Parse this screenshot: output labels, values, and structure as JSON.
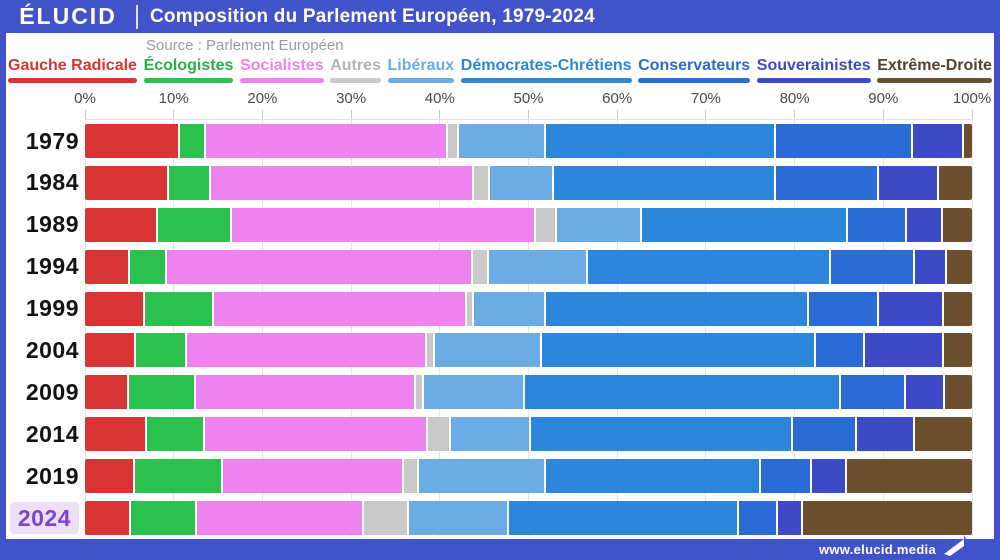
{
  "header": {
    "logo": "ÉLUCID",
    "title": "Composition du Parlement Européen, 1979-2024"
  },
  "source": "Source : Parlement Européen",
  "footer": {
    "website": "www.elucid.media"
  },
  "colors": {
    "frame_blue": "#4153C8",
    "highlight_bg": "#ECDFF8",
    "highlight_text": "#7B44C9",
    "grid": "#E6E6E6",
    "axis_text": "#4A4A4A",
    "year_text": "#121212",
    "source_text": "#9B9B9B"
  },
  "chart_data": {
    "type": "bar",
    "stacked": true,
    "orientation": "horizontal",
    "unit": "percent",
    "xlim": [
      0,
      100
    ],
    "grid": true,
    "x_ticks": [
      "0%",
      "10%",
      "20%",
      "30%",
      "40%",
      "50%",
      "60%",
      "70%",
      "80%",
      "90%",
      "100%"
    ],
    "categories": [
      "1979",
      "1984",
      "1989",
      "1994",
      "1999",
      "2004",
      "2009",
      "2014",
      "2019",
      "2024"
    ],
    "highlighted_category": "2024",
    "series": [
      {
        "name": "Gauche Radicale",
        "color": "#D93434",
        "text_color": "#D93434",
        "values": [
          10.7,
          9.4,
          8.1,
          4.9,
          6.7,
          5.6,
          4.8,
          6.9,
          5.5,
          5.1
        ]
      },
      {
        "name": "Écologistes",
        "color": "#2CC14F",
        "text_color": "#26B347",
        "values": [
          2.7,
          4.6,
          8.3,
          4.1,
          7.7,
          5.7,
          7.5,
          6.4,
          9.9,
          7.3
        ]
      },
      {
        "name": "Socialistes",
        "color": "#EE82EE",
        "text_color": "#EE82EE",
        "values": [
          27.6,
          30.0,
          34.7,
          34.9,
          28.8,
          27.3,
          25.0,
          25.4,
          20.5,
          18.9
        ]
      },
      {
        "name": "Autres",
        "color": "#C9C9C9",
        "text_color": "#B3B3B3",
        "values": [
          1.0,
          1.6,
          2.2,
          1.6,
          0.6,
          0.7,
          0.7,
          2.4,
          1.5,
          5.0
        ]
      },
      {
        "name": "Libéraux",
        "color": "#6BACE4",
        "text_color": "#6BACE4",
        "values": [
          9.8,
          7.1,
          9.5,
          11.1,
          8.0,
          12.0,
          11.4,
          8.9,
          14.4,
          11.2
        ]
      },
      {
        "name": "Démocrates-Chrétiens",
        "color": "#2C86DB",
        "text_color": "#2C86DB",
        "values": [
          26.1,
          25.3,
          23.4,
          27.7,
          29.9,
          31.2,
          36.0,
          29.9,
          24.4,
          26.2
        ]
      },
      {
        "name": "Conservateurs",
        "color": "#2A6CD4",
        "text_color": "#2A6CD4",
        "values": [
          15.6,
          11.5,
          6.6,
          9.4,
          7.9,
          5.5,
          7.3,
          7.1,
          5.6,
          4.2
        ]
      },
      {
        "name": "Souverainistes",
        "color": "#3E49C5",
        "text_color": "#3E49C5",
        "values": [
          5.6,
          6.7,
          3.9,
          3.4,
          7.2,
          8.8,
          4.2,
          6.4,
          3.9,
          2.7
        ]
      },
      {
        "name": "Extrême-Droite",
        "color": "#6C4F2F",
        "text_color": "#55422B",
        "values": [
          0.9,
          3.8,
          3.3,
          2.9,
          3.2,
          3.2,
          3.1,
          6.6,
          14.3,
          19.4
        ]
      }
    ]
  }
}
